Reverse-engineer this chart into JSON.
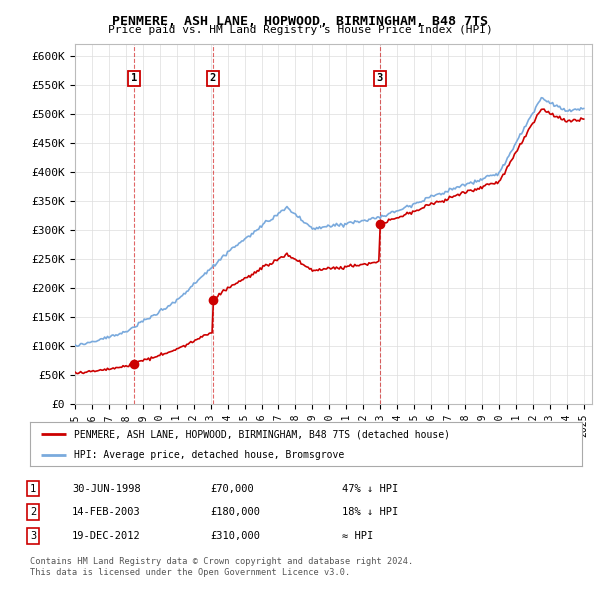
{
  "title": "PENMERE, ASH LANE, HOPWOOD, BIRMINGHAM, B48 7TS",
  "subtitle": "Price paid vs. HM Land Registry's House Price Index (HPI)",
  "ylabel_ticks": [
    "£0",
    "£50K",
    "£100K",
    "£150K",
    "£200K",
    "£250K",
    "£300K",
    "£350K",
    "£400K",
    "£450K",
    "£500K",
    "£550K",
    "£600K"
  ],
  "ylim": [
    0,
    620000
  ],
  "ytick_vals": [
    0,
    50000,
    100000,
    150000,
    200000,
    250000,
    300000,
    350000,
    400000,
    450000,
    500000,
    550000,
    600000
  ],
  "xlim_start": 1995.0,
  "xlim_end": 2025.5,
  "sale_dates": [
    1998.5,
    2003.12,
    2012.97
  ],
  "sale_prices": [
    70000,
    180000,
    310000
  ],
  "sale_labels": [
    "1",
    "2",
    "3"
  ],
  "hpi_color": "#7aaadd",
  "price_color": "#cc0000",
  "background_color": "#ffffff",
  "grid_color": "#dddddd",
  "legend_label_price": "PENMERE, ASH LANE, HOPWOOD, BIRMINGHAM, B48 7TS (detached house)",
  "legend_label_hpi": "HPI: Average price, detached house, Bromsgrove",
  "table_rows": [
    [
      "1",
      "30-JUN-1998",
      "£70,000",
      "47% ↓ HPI"
    ],
    [
      "2",
      "14-FEB-2003",
      "£180,000",
      "18% ↓ HPI"
    ],
    [
      "3",
      "19-DEC-2012",
      "£310,000",
      "≈ HPI"
    ]
  ],
  "footnote1": "Contains HM Land Registry data © Crown copyright and database right 2024.",
  "footnote2": "This data is licensed under the Open Government Licence v3.0."
}
